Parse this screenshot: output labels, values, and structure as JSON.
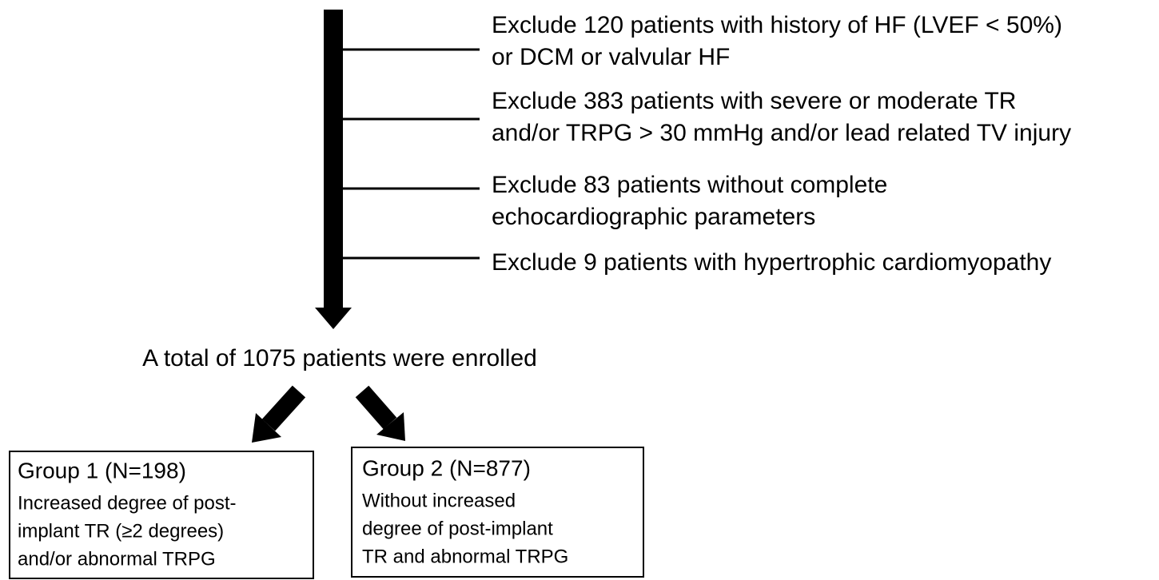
{
  "exclusions": [
    {
      "lines": [
        "Exclude 120 patients with history of HF (LVEF < 50%)",
        "or DCM or valvular HF"
      ]
    },
    {
      "lines": [
        "Exclude 383 patients with severe or moderate TR",
        "and/or TRPG > 30 mmHg and/or lead related TV injury"
      ]
    },
    {
      "lines": [
        "Exclude 83 patients without complete",
        "echocardiographic parameters"
      ]
    },
    {
      "lines": [
        "Exclude 9 patients with hypertrophic cardiomyopathy"
      ]
    }
  ],
  "enrolled": "A total of 1075 patients were enrolled",
  "groups": [
    {
      "title": "Group 1 (N=198)",
      "lines": [
        "Increased degree of post-",
        "implant TR (≥2 degrees)",
        "and/or abnormal TRPG"
      ]
    },
    {
      "title": "Group 2 (N=877)",
      "lines": [
        "Without increased",
        "degree of post-implant",
        "TR and abnormal TRPG"
      ]
    }
  ]
}
